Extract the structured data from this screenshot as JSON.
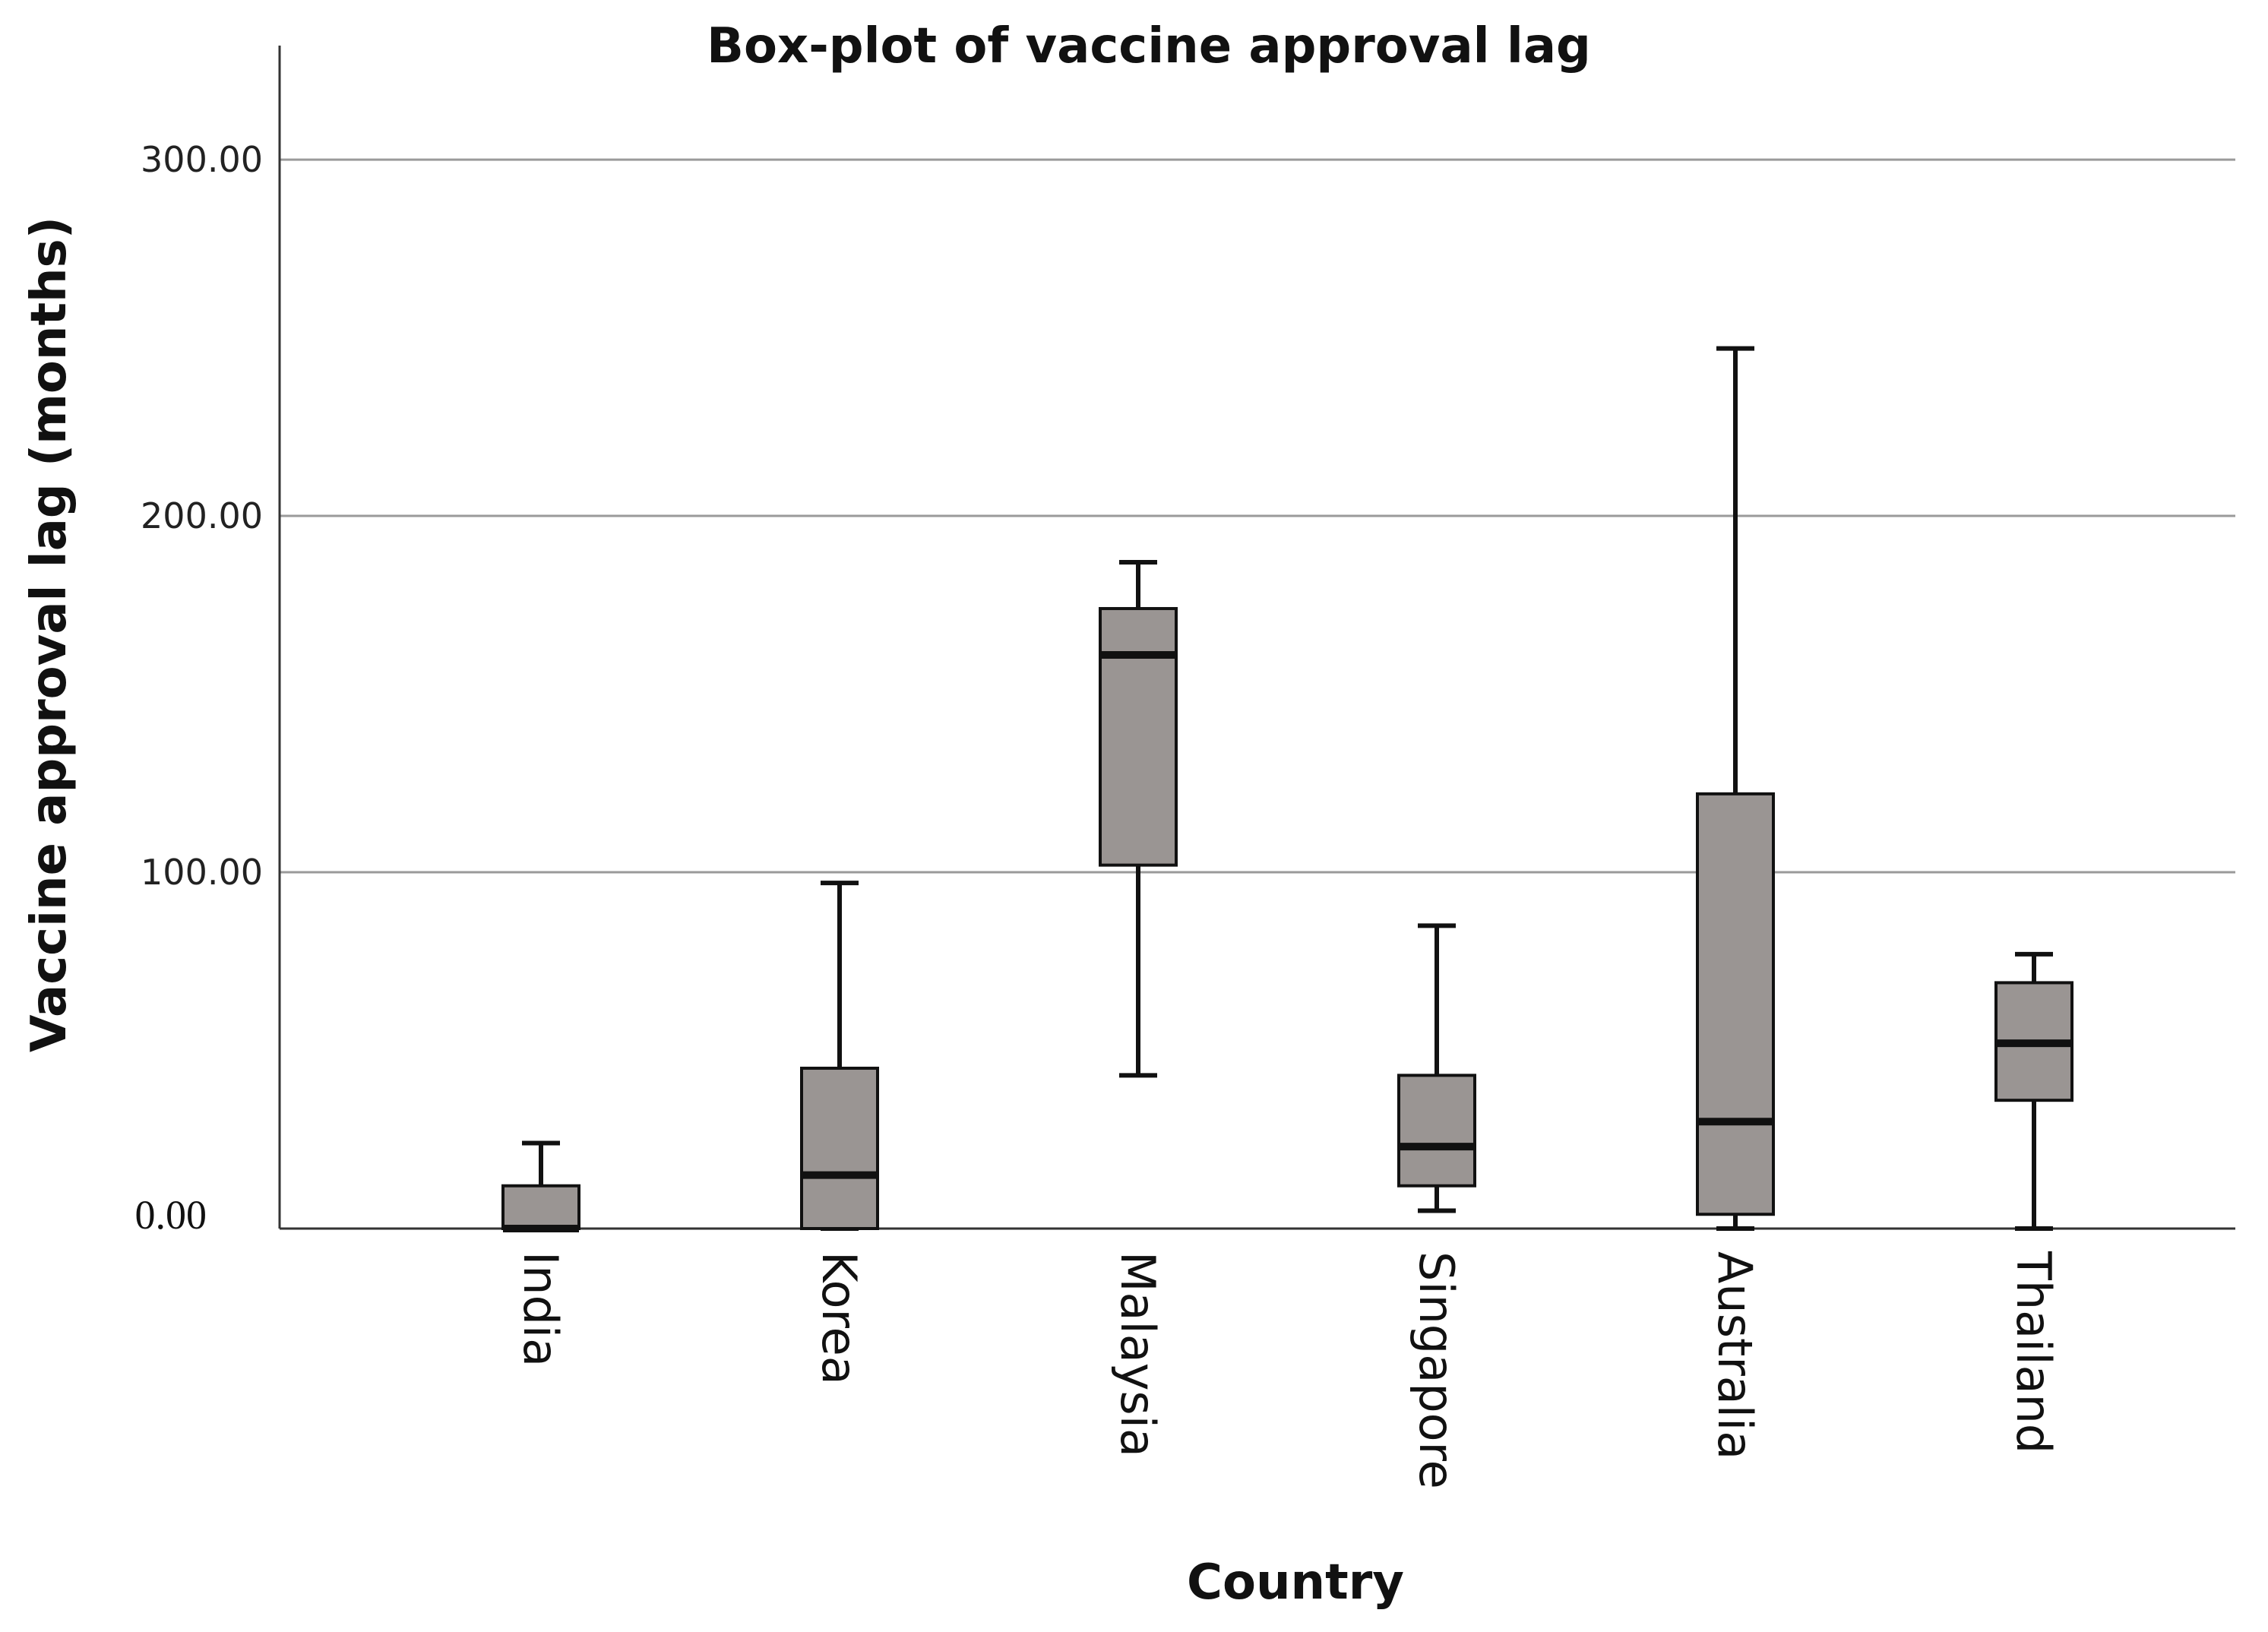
{
  "chart_data": {
    "type": "boxplot",
    "title": "Box-plot of vaccine approval lag",
    "xlabel": "Country",
    "ylabel": "Vaccine approval lag (months)",
    "ylim": [
      0,
      332
    ],
    "yticks": [
      0,
      100,
      200,
      300
    ],
    "ytick_labels": [
      "0.00",
      "100.00",
      "200.00",
      "300.00"
    ],
    "grid": true,
    "box_color": "#9a9593",
    "categories": [
      "India",
      "Korea",
      "Malaysia",
      "Singapore",
      "Australia",
      "Thailand"
    ],
    "boxes": [
      {
        "name": "India",
        "whisker_low": 0,
        "q1": 0,
        "median": 0,
        "q3": 12,
        "whisker_high": 24
      },
      {
        "name": "Korea",
        "whisker_low": 0,
        "q1": 0,
        "median": 15,
        "q3": 45,
        "whisker_high": 97
      },
      {
        "name": "Malaysia",
        "whisker_low": 43,
        "q1": 102,
        "median": 161,
        "q3": 174,
        "whisker_high": 187
      },
      {
        "name": "Singapore",
        "whisker_low": 5,
        "q1": 12,
        "median": 23,
        "q3": 43,
        "whisker_high": 85
      },
      {
        "name": "Australia",
        "whisker_low": 0,
        "q1": 4,
        "median": 30,
        "q3": 122,
        "whisker_high": 247
      },
      {
        "name": "Thailand",
        "whisker_low": 0,
        "q1": 36,
        "median": 52,
        "q3": 69,
        "whisker_high": 77
      }
    ]
  }
}
